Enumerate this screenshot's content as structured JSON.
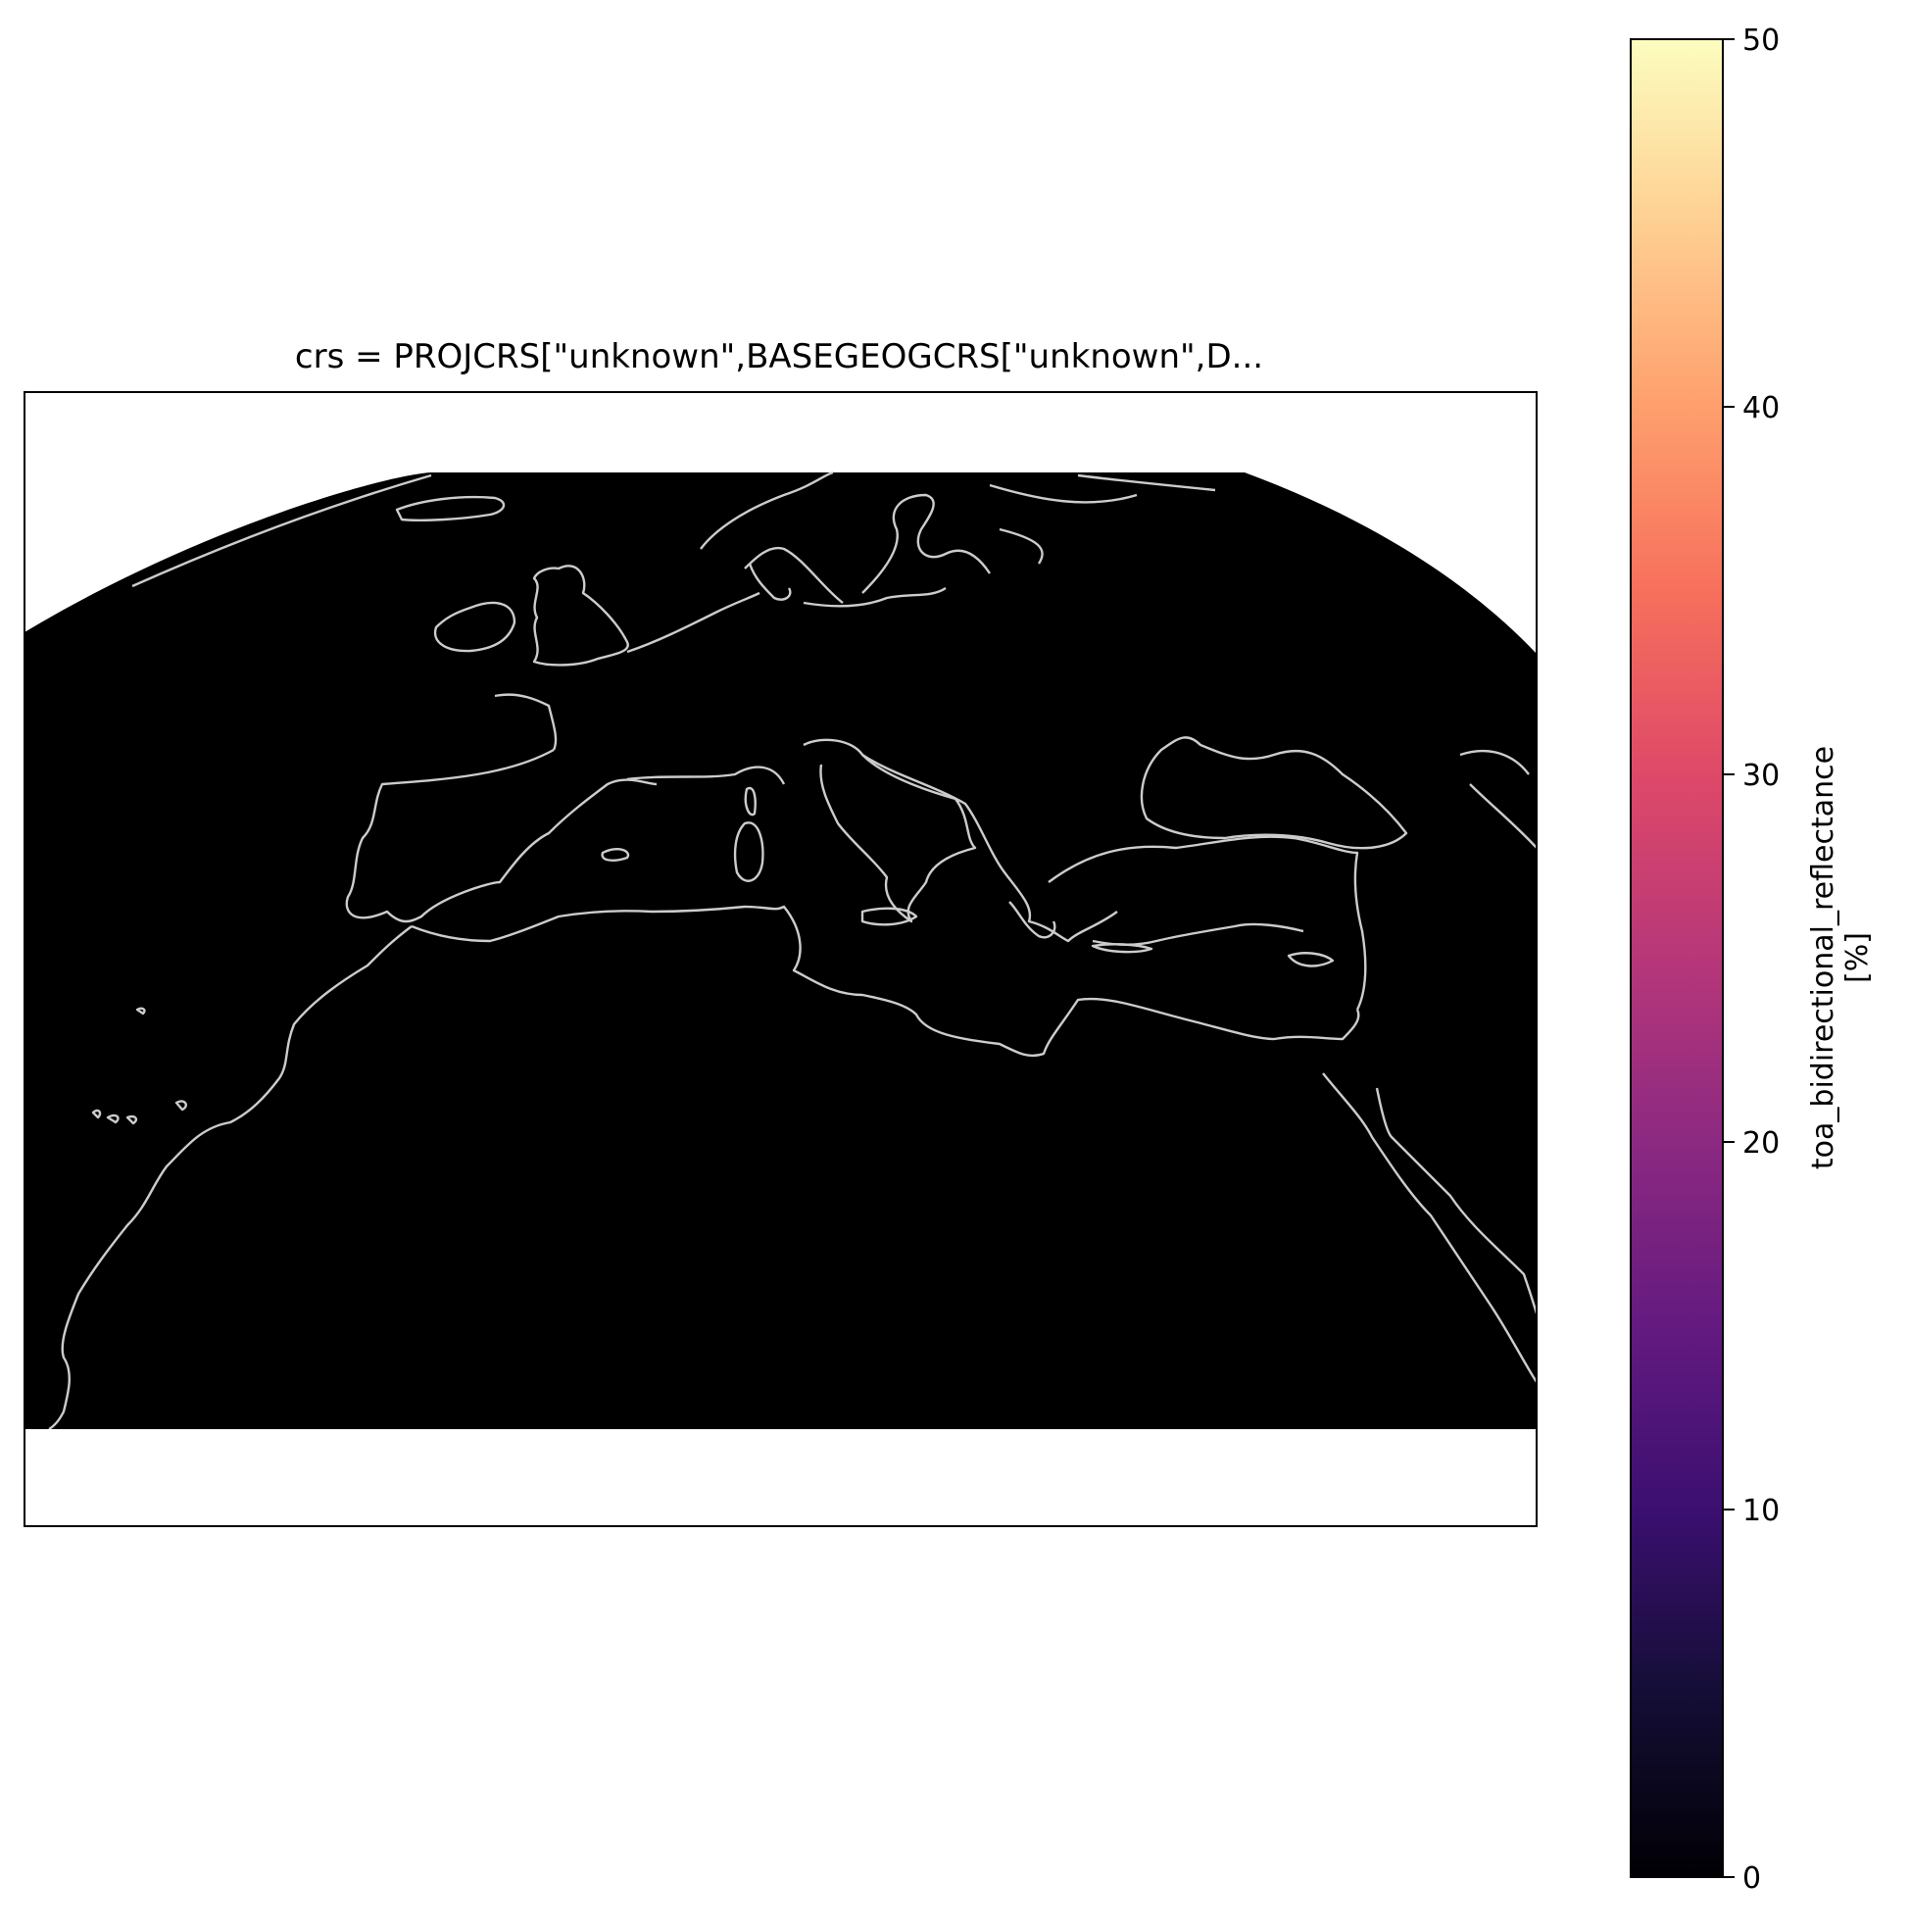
{
  "title": "crs = PROJCRS[\"unknown\",BASEGEOGCRS[\"unknown\",D...",
  "map": {
    "background": "#000000",
    "coastline_color": "#cccccc",
    "outside_color": "#ffffff"
  },
  "colorbar": {
    "colormap": "magma",
    "min": 0,
    "max": 50,
    "ticks": [
      0,
      10,
      20,
      30,
      40,
      50
    ],
    "tick_labels": [
      "0",
      "10",
      "20",
      "30",
      "40",
      "50"
    ],
    "label": "toa_bidirectional_reflectance",
    "unit": "[%]"
  }
}
